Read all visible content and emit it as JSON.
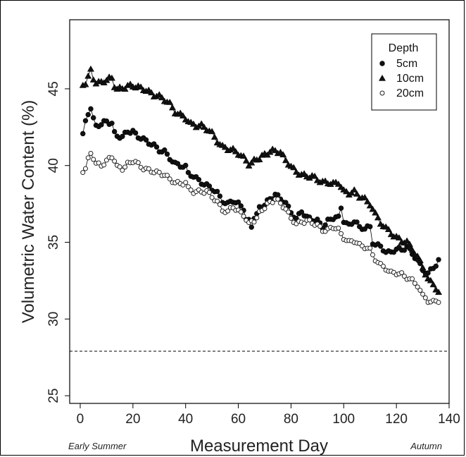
{
  "chart_data": {
    "type": "scatter",
    "xlabel": "Measurement Day",
    "ylabel": "Volumetric Water Content (%)",
    "xlim": [
      -4,
      140
    ],
    "ylim": [
      24.5,
      49.5
    ],
    "xticks": [
      "0",
      "20",
      "40",
      "60",
      "80",
      "100",
      "120",
      "140"
    ],
    "yticks": [
      "25",
      "30",
      "35",
      "40",
      "45"
    ],
    "annotations": {
      "left": "Early Summer",
      "right": "Autumn"
    },
    "reference_line": {
      "y": 27.9,
      "style": "dashed"
    },
    "legend": {
      "title": "Depth",
      "position": "top-right"
    },
    "series": [
      {
        "name": "5cm",
        "marker": "filled-circle",
        "keypoints": [
          [
            1,
            42.1
          ],
          [
            2,
            42.8
          ],
          [
            3,
            43.4
          ],
          [
            4,
            43.7
          ],
          [
            5,
            43.0
          ],
          [
            6,
            42.6
          ],
          [
            8,
            42.7
          ],
          [
            10,
            42.9
          ],
          [
            12,
            42.7
          ],
          [
            13,
            42.1
          ],
          [
            14,
            41.9
          ],
          [
            16,
            41.9
          ],
          [
            18,
            42.2
          ],
          [
            20,
            42.2
          ],
          [
            22,
            41.9
          ],
          [
            24,
            41.7
          ],
          [
            26,
            41.5
          ],
          [
            28,
            41.3
          ],
          [
            30,
            41.0
          ],
          [
            32,
            40.9
          ],
          [
            34,
            40.5
          ],
          [
            36,
            40.1
          ],
          [
            38,
            40.0
          ],
          [
            40,
            39.9
          ],
          [
            41,
            39.5
          ],
          [
            43,
            39.3
          ],
          [
            46,
            38.9
          ],
          [
            48,
            38.7
          ],
          [
            50,
            38.5
          ],
          [
            52,
            38.2
          ],
          [
            54,
            37.7
          ],
          [
            56,
            37.5
          ],
          [
            58,
            37.7
          ],
          [
            60,
            37.5
          ],
          [
            62,
            37.2
          ],
          [
            63,
            36.5
          ],
          [
            64,
            36.4
          ],
          [
            65,
            35.9
          ],
          [
            66,
            36.6
          ],
          [
            68,
            37.2
          ],
          [
            70,
            37.5
          ],
          [
            72,
            37.8
          ],
          [
            74,
            38.1
          ],
          [
            76,
            37.9
          ],
          [
            78,
            37.5
          ],
          [
            80,
            37.0
          ],
          [
            82,
            36.5
          ],
          [
            84,
            37.0
          ],
          [
            86,
            36.6
          ],
          [
            88,
            36.5
          ],
          [
            90,
            36.4
          ],
          [
            92,
            36.0
          ],
          [
            94,
            36.4
          ],
          [
            96,
            36.6
          ],
          [
            98,
            36.6
          ],
          [
            99,
            37.3
          ],
          [
            100,
            36.3
          ],
          [
            102,
            36.1
          ],
          [
            104,
            36.4
          ],
          [
            106,
            36.0
          ],
          [
            108,
            35.9
          ],
          [
            110,
            36.0
          ],
          [
            111,
            35.0
          ],
          [
            113,
            34.8
          ],
          [
            116,
            34.4
          ],
          [
            118,
            34.3
          ],
          [
            120,
            34.6
          ],
          [
            122,
            34.5
          ],
          [
            124,
            34.7
          ],
          [
            126,
            34.3
          ],
          [
            128,
            33.8
          ],
          [
            130,
            33.2
          ],
          [
            132,
            33.0
          ],
          [
            134,
            33.3
          ],
          [
            136,
            33.8
          ]
        ]
      },
      {
        "name": "10cm",
        "marker": "filled-triangle",
        "keypoints": [
          [
            1,
            45.2
          ],
          [
            2,
            45.4
          ],
          [
            3,
            45.8
          ],
          [
            4,
            46.2
          ],
          [
            5,
            45.7
          ],
          [
            6,
            45.4
          ],
          [
            8,
            45.4
          ],
          [
            10,
            45.6
          ],
          [
            12,
            45.7
          ],
          [
            13,
            45.2
          ],
          [
            14,
            45.0
          ],
          [
            16,
            45.0
          ],
          [
            18,
            45.2
          ],
          [
            20,
            45.2
          ],
          [
            22,
            45.1
          ],
          [
            24,
            45.0
          ],
          [
            26,
            44.8
          ],
          [
            28,
            44.6
          ],
          [
            30,
            44.5
          ],
          [
            32,
            44.3
          ],
          [
            34,
            44.0
          ],
          [
            36,
            43.5
          ],
          [
            38,
            43.3
          ],
          [
            40,
            43.1
          ],
          [
            42,
            42.7
          ],
          [
            44,
            42.6
          ],
          [
            46,
            42.6
          ],
          [
            48,
            42.4
          ],
          [
            50,
            42.1
          ],
          [
            52,
            41.6
          ],
          [
            54,
            41.2
          ],
          [
            56,
            41.1
          ],
          [
            58,
            41.0
          ],
          [
            60,
            40.8
          ],
          [
            62,
            40.5
          ],
          [
            64,
            40.1
          ],
          [
            66,
            40.3
          ],
          [
            68,
            40.5
          ],
          [
            70,
            40.7
          ],
          [
            72,
            40.9
          ],
          [
            74,
            41.0
          ],
          [
            76,
            40.8
          ],
          [
            78,
            40.4
          ],
          [
            80,
            39.9
          ],
          [
            82,
            39.6
          ],
          [
            84,
            39.4
          ],
          [
            86,
            39.3
          ],
          [
            88,
            39.3
          ],
          [
            90,
            39.1
          ],
          [
            92,
            38.9
          ],
          [
            94,
            38.9
          ],
          [
            96,
            38.8
          ],
          [
            98,
            38.9
          ],
          [
            100,
            38.3
          ],
          [
            102,
            38.2
          ],
          [
            104,
            38.3
          ],
          [
            106,
            38.0
          ],
          [
            108,
            37.8
          ],
          [
            110,
            37.5
          ],
          [
            112,
            36.8
          ],
          [
            114,
            36.3
          ],
          [
            116,
            35.9
          ],
          [
            118,
            35.6
          ],
          [
            120,
            35.3
          ],
          [
            122,
            35.1
          ],
          [
            124,
            35.0
          ],
          [
            126,
            34.6
          ],
          [
            128,
            34.0
          ],
          [
            130,
            33.4
          ],
          [
            132,
            32.6
          ],
          [
            134,
            32.2
          ],
          [
            136,
            31.8
          ]
        ]
      },
      {
        "name": "20cm",
        "marker": "open-circle",
        "keypoints": [
          [
            1,
            39.6
          ],
          [
            2,
            39.9
          ],
          [
            3,
            40.4
          ],
          [
            4,
            40.8
          ],
          [
            5,
            40.5
          ],
          [
            6,
            40.1
          ],
          [
            8,
            40.0
          ],
          [
            10,
            40.3
          ],
          [
            12,
            40.6
          ],
          [
            13,
            40.3
          ],
          [
            14,
            39.9
          ],
          [
            16,
            39.8
          ],
          [
            18,
            40.1
          ],
          [
            20,
            40.3
          ],
          [
            22,
            40.1
          ],
          [
            24,
            39.8
          ],
          [
            26,
            39.7
          ],
          [
            28,
            39.6
          ],
          [
            30,
            39.5
          ],
          [
            32,
            39.4
          ],
          [
            34,
            39.1
          ],
          [
            36,
            38.9
          ],
          [
            38,
            38.8
          ],
          [
            40,
            38.9
          ],
          [
            41,
            38.5
          ],
          [
            43,
            38.3
          ],
          [
            46,
            38.3
          ],
          [
            48,
            38.3
          ],
          [
            50,
            38.0
          ],
          [
            52,
            37.6
          ],
          [
            54,
            37.1
          ],
          [
            56,
            37.0
          ],
          [
            58,
            37.3
          ],
          [
            60,
            37.0
          ],
          [
            62,
            36.8
          ],
          [
            63,
            36.5
          ],
          [
            64,
            36.2
          ],
          [
            66,
            36.4
          ],
          [
            68,
            36.9
          ],
          [
            70,
            37.3
          ],
          [
            72,
            37.6
          ],
          [
            74,
            37.8
          ],
          [
            76,
            37.6
          ],
          [
            78,
            37.1
          ],
          [
            80,
            36.6
          ],
          [
            82,
            36.2
          ],
          [
            84,
            36.3
          ],
          [
            86,
            36.4
          ],
          [
            88,
            36.3
          ],
          [
            90,
            36.1
          ],
          [
            92,
            35.8
          ],
          [
            94,
            35.8
          ],
          [
            96,
            36.0
          ],
          [
            98,
            35.8
          ],
          [
            100,
            35.3
          ],
          [
            102,
            35.0
          ],
          [
            104,
            35.1
          ],
          [
            106,
            34.8
          ],
          [
            108,
            34.7
          ],
          [
            110,
            34.5
          ],
          [
            112,
            33.9
          ],
          [
            114,
            33.5
          ],
          [
            116,
            33.3
          ],
          [
            118,
            33.0
          ],
          [
            120,
            33.0
          ],
          [
            122,
            32.9
          ],
          [
            124,
            32.7
          ],
          [
            126,
            32.5
          ],
          [
            128,
            32.2
          ],
          [
            130,
            31.5
          ],
          [
            132,
            31.2
          ],
          [
            134,
            31.1
          ],
          [
            136,
            31.2
          ]
        ]
      }
    ]
  }
}
